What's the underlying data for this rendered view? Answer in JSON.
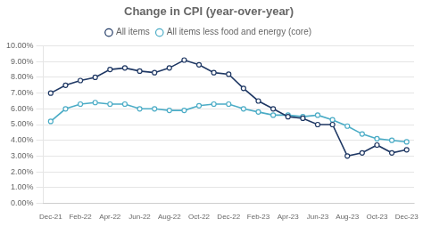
{
  "chart_data": {
    "type": "line",
    "title": "Change in CPI (year-over-year)",
    "categories": [
      "Dec-21",
      null,
      "Feb-22",
      null,
      "Apr-22",
      null,
      "Jun-22",
      null,
      "Aug-22",
      null,
      "Oct-22",
      null,
      "Dec-22",
      null,
      "Feb-23",
      null,
      "Apr-23",
      null,
      "Jun-23",
      null,
      "Aug-23",
      null,
      "Oct-23",
      null,
      "Dec-23"
    ],
    "series": [
      {
        "name": "All items",
        "color": "#1f3864",
        "marker": "circle",
        "line_style": "solid",
        "values": [
          0.07,
          0.075,
          0.078,
          0.08,
          0.085,
          0.086,
          0.084,
          0.083,
          0.086,
          0.091,
          0.088,
          0.083,
          0.082,
          0.073,
          0.065,
          0.06,
          0.055,
          0.054,
          0.05,
          0.05,
          0.03,
          0.032,
          0.037,
          0.032,
          0.034
        ]
      },
      {
        "name": "All items less food and energy (core)",
        "color": "#4bacc6",
        "marker": "circle",
        "line_style": "solid",
        "values": [
          0.052,
          0.06,
          0.063,
          0.064,
          0.063,
          0.063,
          0.06,
          0.06,
          0.059,
          0.059,
          0.062,
          0.063,
          0.063,
          0.06,
          0.058,
          0.056,
          0.056,
          0.055,
          0.056,
          0.053,
          0.049,
          0.044,
          0.041,
          0.04,
          0.039
        ]
      }
    ],
    "ylim": [
      0.0,
      0.1
    ],
    "yticks": [
      {
        "value": 0.0,
        "label": "0.00%"
      },
      {
        "value": 0.01,
        "label": "1.00%"
      },
      {
        "value": 0.02,
        "label": "2.00%"
      },
      {
        "value": 0.03,
        "label": "3.00%"
      },
      {
        "value": 0.04,
        "label": "4.00%"
      },
      {
        "value": 0.05,
        "label": "5.00%"
      },
      {
        "value": 0.06,
        "label": "6.00%"
      },
      {
        "value": 0.07,
        "label": "7.00%"
      },
      {
        "value": 0.08,
        "label": "8.00%"
      },
      {
        "value": 0.09,
        "label": "9.00%"
      },
      {
        "value": 0.1,
        "label": "10.00%"
      }
    ],
    "grid": "y",
    "legend": "top"
  }
}
